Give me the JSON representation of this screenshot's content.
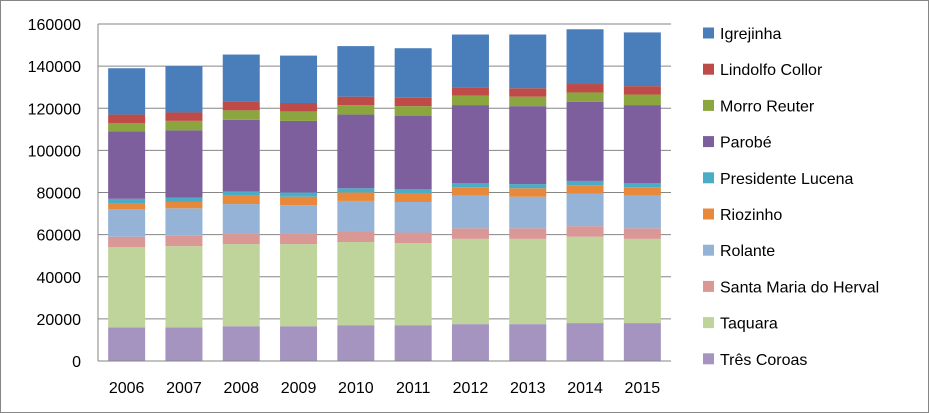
{
  "chart_data": {
    "type": "bar",
    "stacked": true,
    "title": "",
    "xlabel": "",
    "ylabel": "",
    "categories": [
      "2006",
      "2007",
      "2008",
      "2009",
      "2010",
      "2011",
      "2012",
      "2013",
      "2014",
      "2015"
    ],
    "ylim": [
      0,
      160000
    ],
    "yticks": [
      0,
      20000,
      40000,
      60000,
      80000,
      100000,
      120000,
      140000,
      160000
    ],
    "ytick_labels": [
      "0",
      "20000",
      "40000",
      "60000",
      "80000",
      "100000",
      "120000",
      "140000",
      "160000"
    ],
    "grid": true,
    "legend_position": "right",
    "series": [
      {
        "name": "Três Coroas",
        "color": "#A593C0",
        "values": [
          16000,
          16000,
          16500,
          16500,
          17000,
          17000,
          17500,
          17500,
          18000,
          18000
        ]
      },
      {
        "name": "Taquara",
        "color": "#BFD49A",
        "values": [
          38000,
          38500,
          39000,
          39000,
          39500,
          39000,
          40500,
          40500,
          41000,
          40000
        ]
      },
      {
        "name": "Santa Maria do Herval",
        "color": "#D99795",
        "values": [
          5000,
          5000,
          5000,
          5000,
          5000,
          5000,
          5000,
          5000,
          5000,
          5000
        ]
      },
      {
        "name": "Rolante",
        "color": "#95B3D7",
        "values": [
          13000,
          13000,
          14000,
          13500,
          14500,
          14500,
          15500,
          15000,
          15500,
          15500
        ]
      },
      {
        "name": "Riozinho",
        "color": "#E8883A",
        "values": [
          3000,
          3000,
          4000,
          4000,
          4000,
          4000,
          4000,
          4000,
          4000,
          4000
        ]
      },
      {
        "name": "Presidente Lucena",
        "color": "#4BACC6",
        "values": [
          2000,
          2000,
          2000,
          2000,
          2000,
          2000,
          2000,
          2000,
          2000,
          2000
        ]
      },
      {
        "name": "Parobé",
        "color": "#7C5F9C",
        "values": [
          32000,
          32000,
          34000,
          34000,
          35000,
          35000,
          37000,
          37000,
          37500,
          37000
        ]
      },
      {
        "name": "Morro Reuter",
        "color": "#8BA63E",
        "values": [
          4000,
          4500,
          4500,
          4500,
          4500,
          4500,
          4500,
          4500,
          4500,
          5000
        ]
      },
      {
        "name": "Lindolfo Collor",
        "color": "#BE4B48",
        "values": [
          4000,
          4000,
          4000,
          4000,
          4000,
          4000,
          4000,
          4000,
          4000,
          4000
        ]
      },
      {
        "name": "Igrejinha",
        "color": "#4A7EBB",
        "values": [
          22000,
          22000,
          22500,
          22500,
          24000,
          23500,
          25000,
          25500,
          26000,
          25500
        ]
      }
    ]
  }
}
